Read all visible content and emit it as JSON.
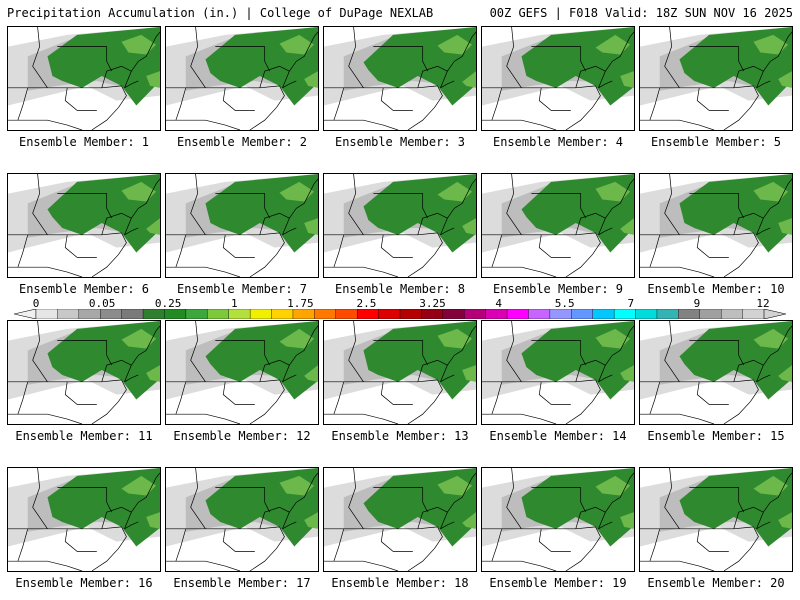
{
  "header": {
    "title": "Precipitation Accumulation (in.) | College of DuPage NEXLAB",
    "run_info": "00Z GEFS | F018 Valid: 18Z SUN NOV 16 2025"
  },
  "panels": [
    "Ensemble Member: 1",
    "Ensemble Member: 2",
    "Ensemble Member: 3",
    "Ensemble Member: 4",
    "Ensemble Member: 5",
    "Ensemble Member: 6",
    "Ensemble Member: 7",
    "Ensemble Member: 8",
    "Ensemble Member: 9",
    "Ensemble Member: 10",
    "Ensemble Member: 11",
    "Ensemble Member: 12",
    "Ensemble Member: 13",
    "Ensemble Member: 14",
    "Ensemble Member: 15",
    "Ensemble Member: 16",
    "Ensemble Member: 17",
    "Ensemble Member: 18",
    "Ensemble Member: 19",
    "Ensemble Member: 20"
  ],
  "colorbar": {
    "tick_labels": [
      "0",
      "0.05",
      "0.25",
      "1",
      "1.75",
      "2.5",
      "3.25",
      "4",
      "5.5",
      "7",
      "9",
      "12"
    ],
    "colors": [
      "#e6e6e6",
      "#c8c8c8",
      "#a8a8a8",
      "#8c8c8c",
      "#7a7a7a",
      "#2f7f2f",
      "#238b23",
      "#3ca83c",
      "#7cc93c",
      "#b4e03c",
      "#f0f000",
      "#ffd200",
      "#ffa500",
      "#ff7800",
      "#ff4b00",
      "#ff0000",
      "#dc0000",
      "#b40000",
      "#960014",
      "#82003c",
      "#b40078",
      "#dc00b4",
      "#ff00ff",
      "#c864ff",
      "#9696ff",
      "#6496ff",
      "#00c8ff",
      "#00ffff",
      "#00dcdc",
      "#32b4b4",
      "#828282",
      "#a0a0a0",
      "#bebebe",
      "#d2d2d2"
    ]
  },
  "map_colors": {
    "green": "#2f8a2f",
    "light_green": "#6cb84a",
    "gray": "#bdbdbd",
    "light_gray": "#dcdcdc",
    "border": "#000000"
  }
}
